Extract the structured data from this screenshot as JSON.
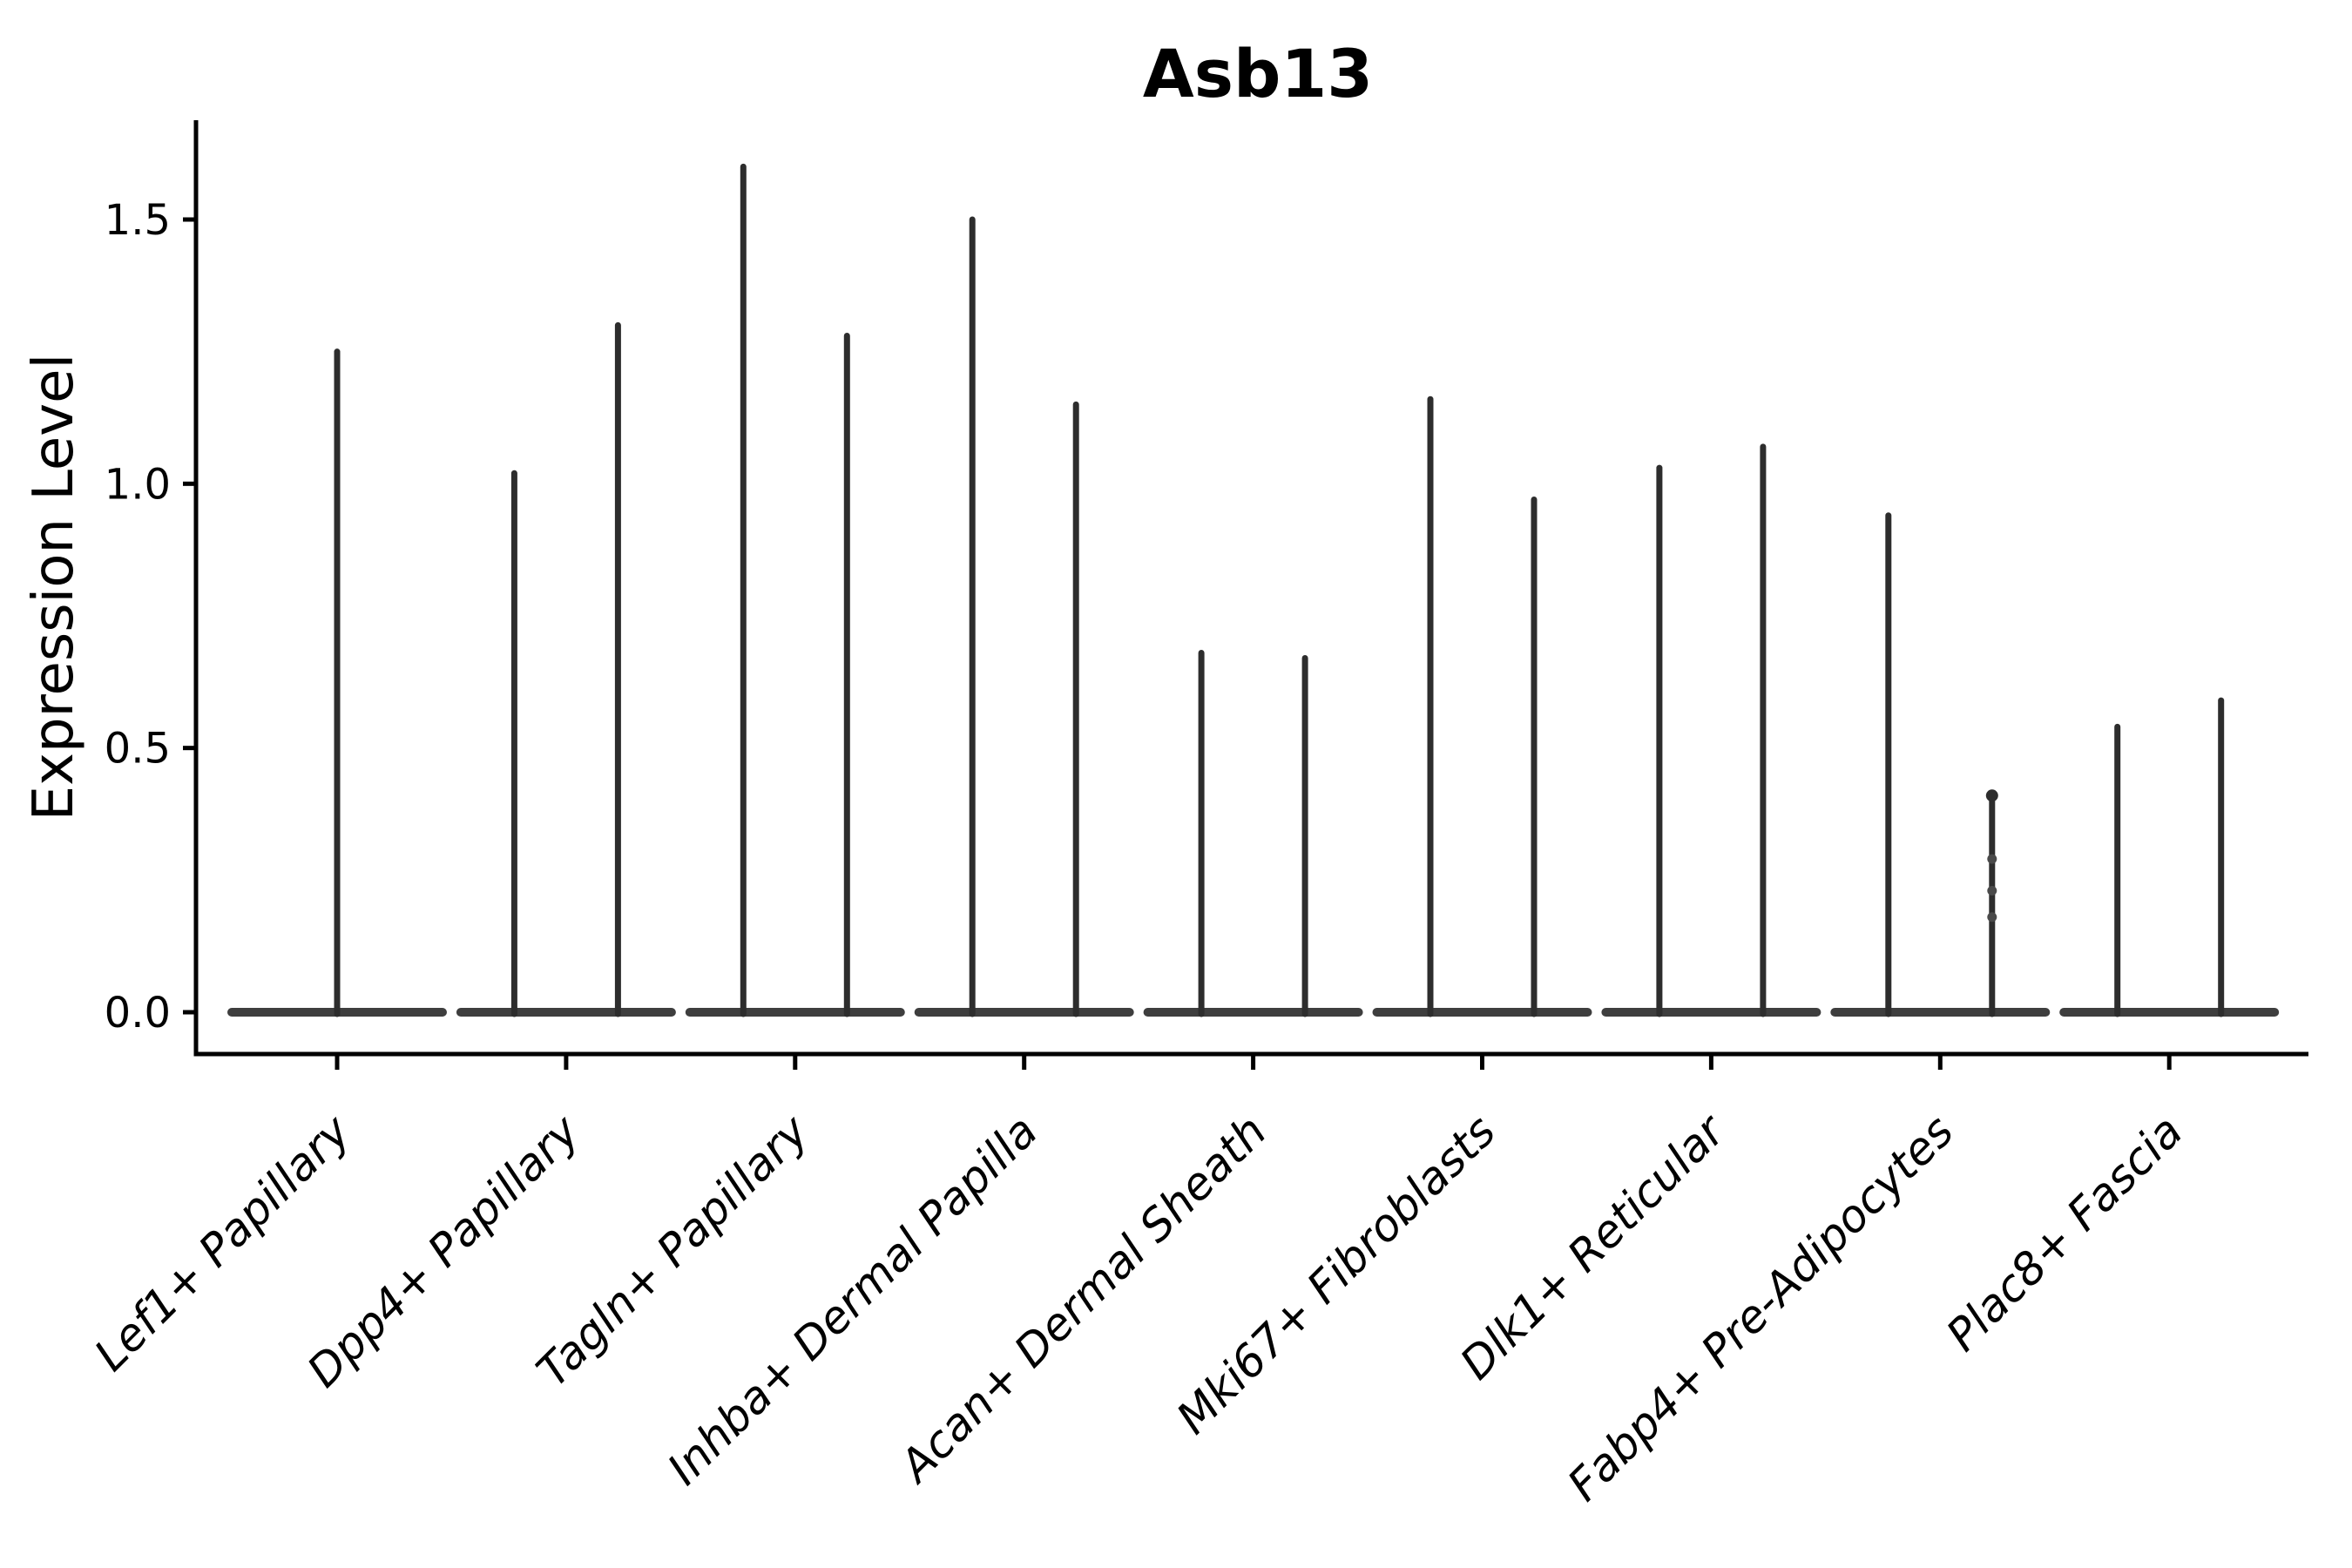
{
  "chart_data": {
    "type": "violin",
    "title": "Asb13",
    "ylabel": "Expression Level",
    "xlabel": "",
    "grid": false,
    "legend": null,
    "ylim": [
      -0.08,
      1.69
    ],
    "ytick_labels": [
      "0.0",
      "0.5",
      "1.0",
      "1.5"
    ],
    "ytick_values": [
      0.0,
      0.5,
      1.0,
      1.5
    ],
    "categories": [
      "Lef1+ Papillary",
      "Dpp4+ Papillary",
      "Tagln+ Papillary",
      "Inhba+ Dermal Papilla",
      "Acan+ Dermal Sheath",
      "Mki67+ Fibroblasts",
      "Dlk1+ Reticular",
      "Fabp4+ Pre-Adipocytes",
      "Plac8+ Fascia"
    ],
    "violins": [
      {
        "category": "Lef1+ Papillary",
        "spike_maxima": [
          1.25
        ]
      },
      {
        "category": "Dpp4+ Papillary",
        "spike_maxima": [
          1.02,
          1.3
        ]
      },
      {
        "category": "Tagln+ Papillary",
        "spike_maxima": [
          1.6,
          1.28
        ]
      },
      {
        "category": "Inhba+ Dermal Papilla",
        "spike_maxima": [
          1.5,
          1.15
        ]
      },
      {
        "category": "Acan+ Dermal Sheath",
        "spike_maxima": [
          0.68,
          0.67
        ]
      },
      {
        "category": "Mki67+ Fibroblasts",
        "spike_maxima": [
          1.16,
          0.97
        ]
      },
      {
        "category": "Dlk1+ Reticular",
        "spike_maxima": [
          1.03,
          1.07
        ]
      },
      {
        "category": "Fabp4+ Pre-Adipocytes",
        "spike_maxima": [
          0.94,
          0.41
        ],
        "visible_points": {
          "spike_index": 1,
          "values": [
            0.29,
            0.23,
            0.18
          ]
        }
      },
      {
        "category": "Plac8+ Fascia",
        "spike_maxima": [
          0.54,
          0.59
        ]
      }
    ],
    "colors": {
      "violin_stroke": "#2d2d2d",
      "violin_base": "#3e3e3e",
      "point": "#4a4a4a",
      "axis": "#000000",
      "text": "#000000"
    }
  }
}
